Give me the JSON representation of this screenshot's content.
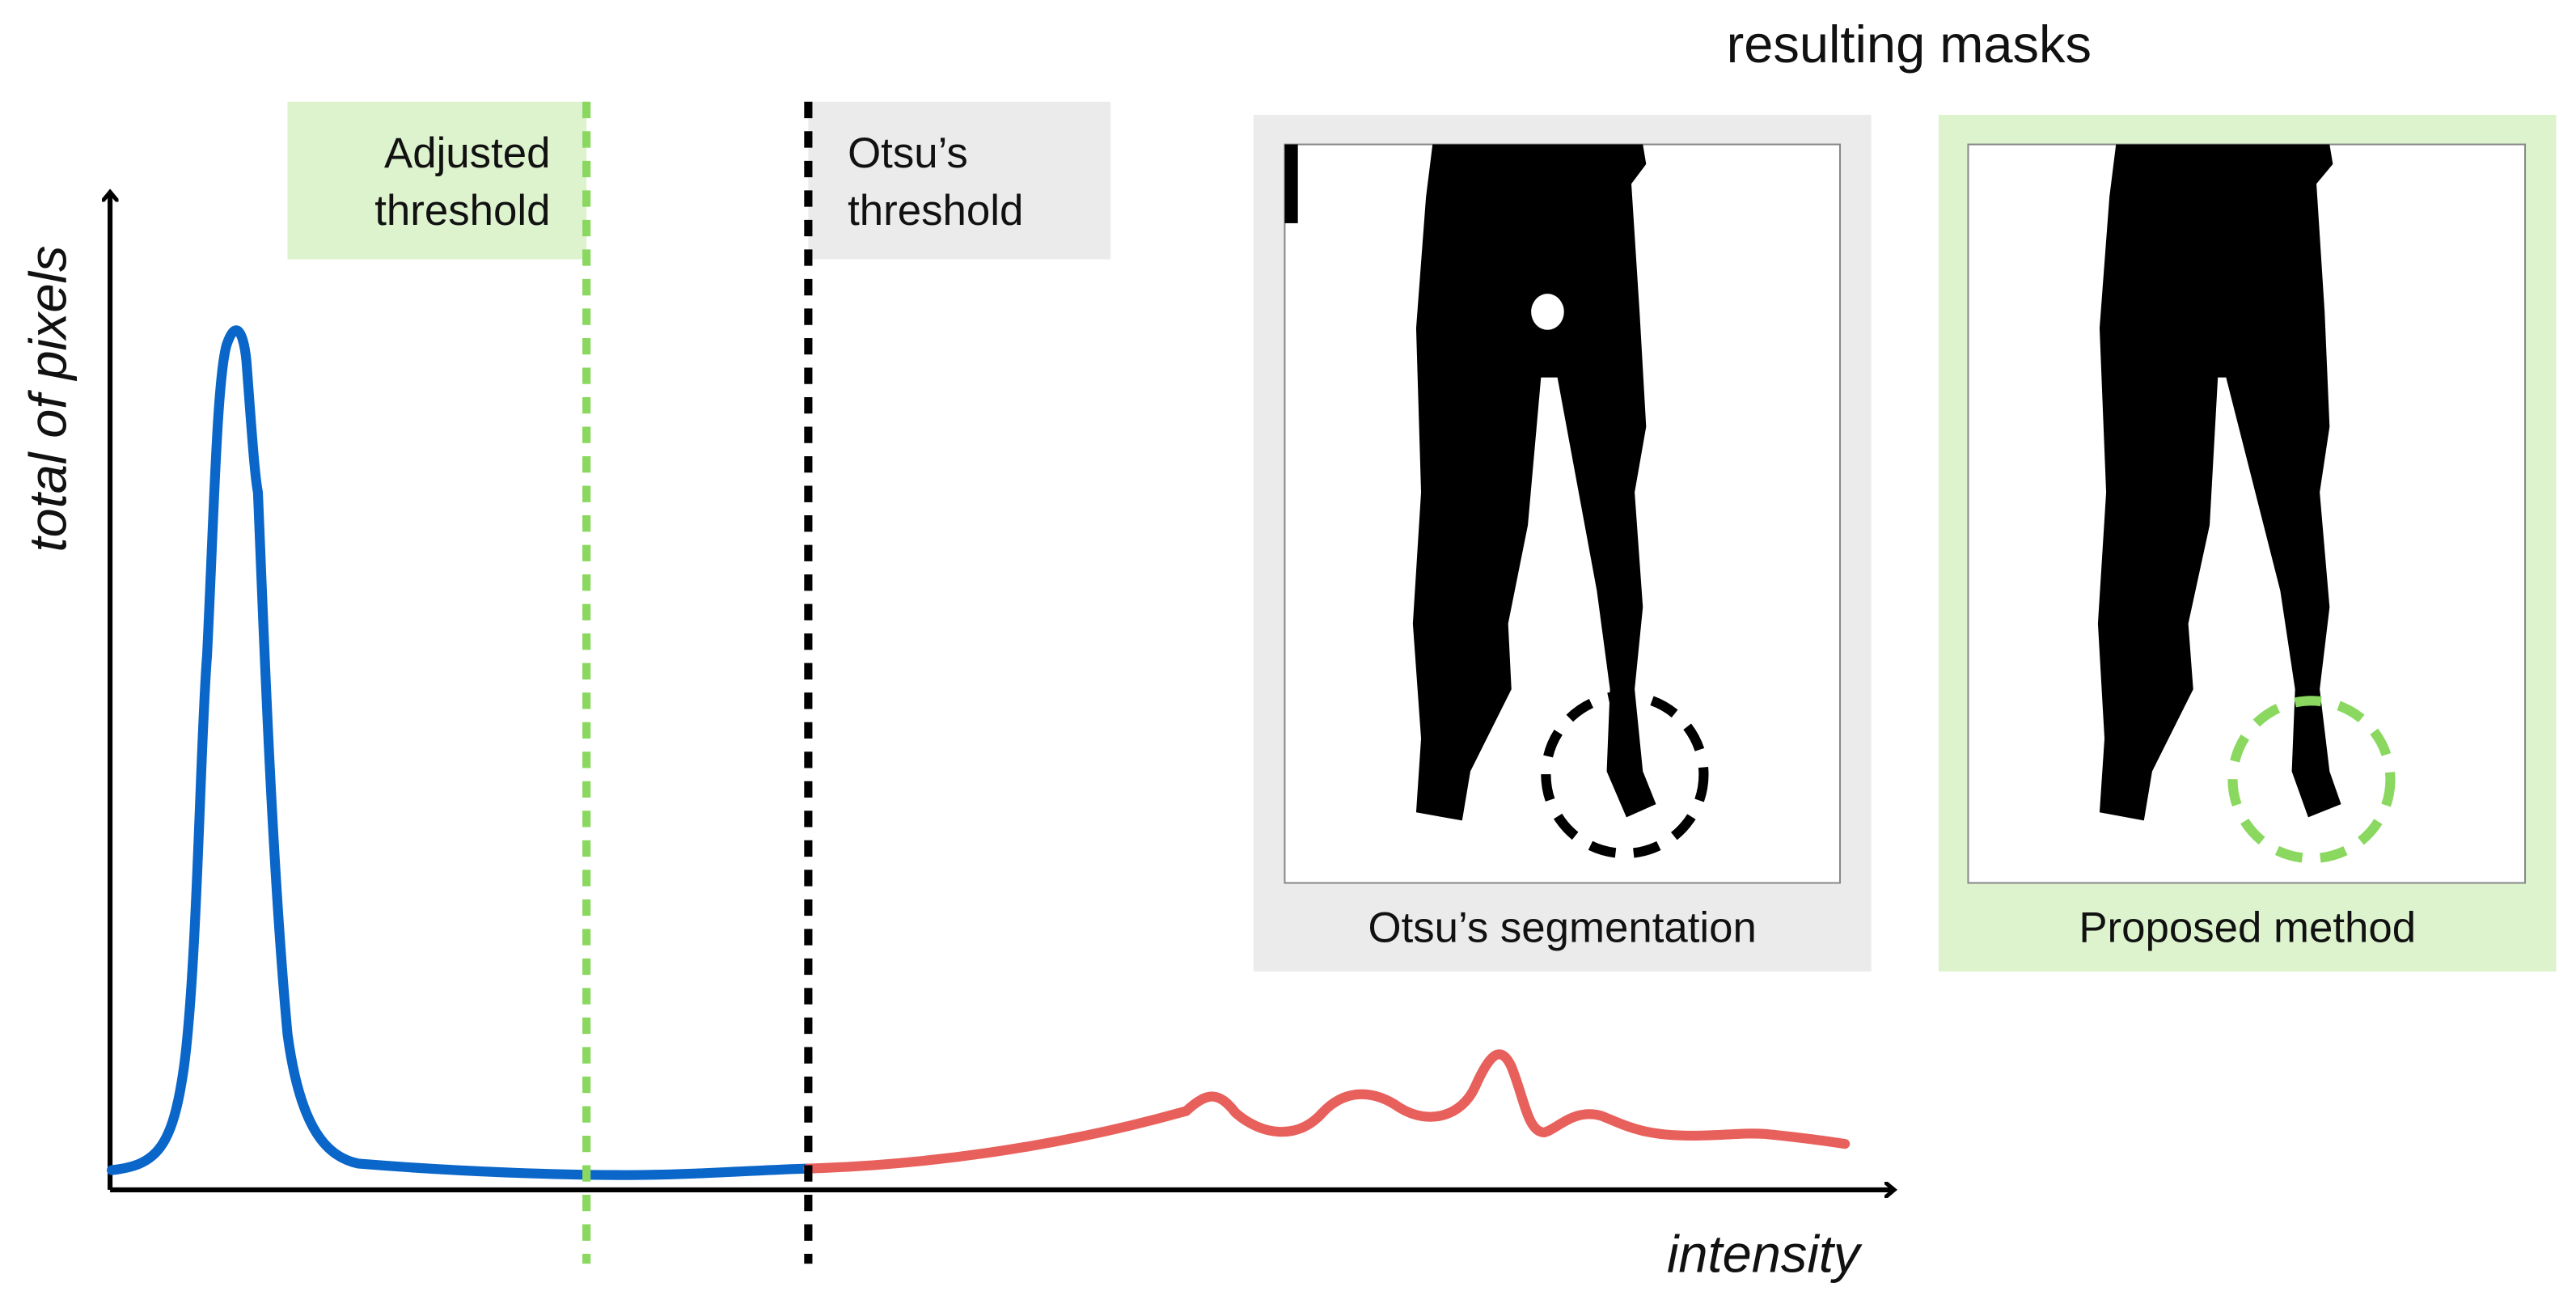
{
  "title": "resulting masks",
  "y_axis_label": "total of pixels",
  "x_axis_label": "intensity",
  "thresholds": [
    {
      "lines": [
        "Adjusted",
        "threshold"
      ]
    },
    {
      "lines": [
        "Otsu’s",
        "threshold"
      ]
    }
  ],
  "masks": [
    {
      "caption": "Otsu’s segmentation"
    },
    {
      "caption": "Proposed method"
    }
  ]
}
